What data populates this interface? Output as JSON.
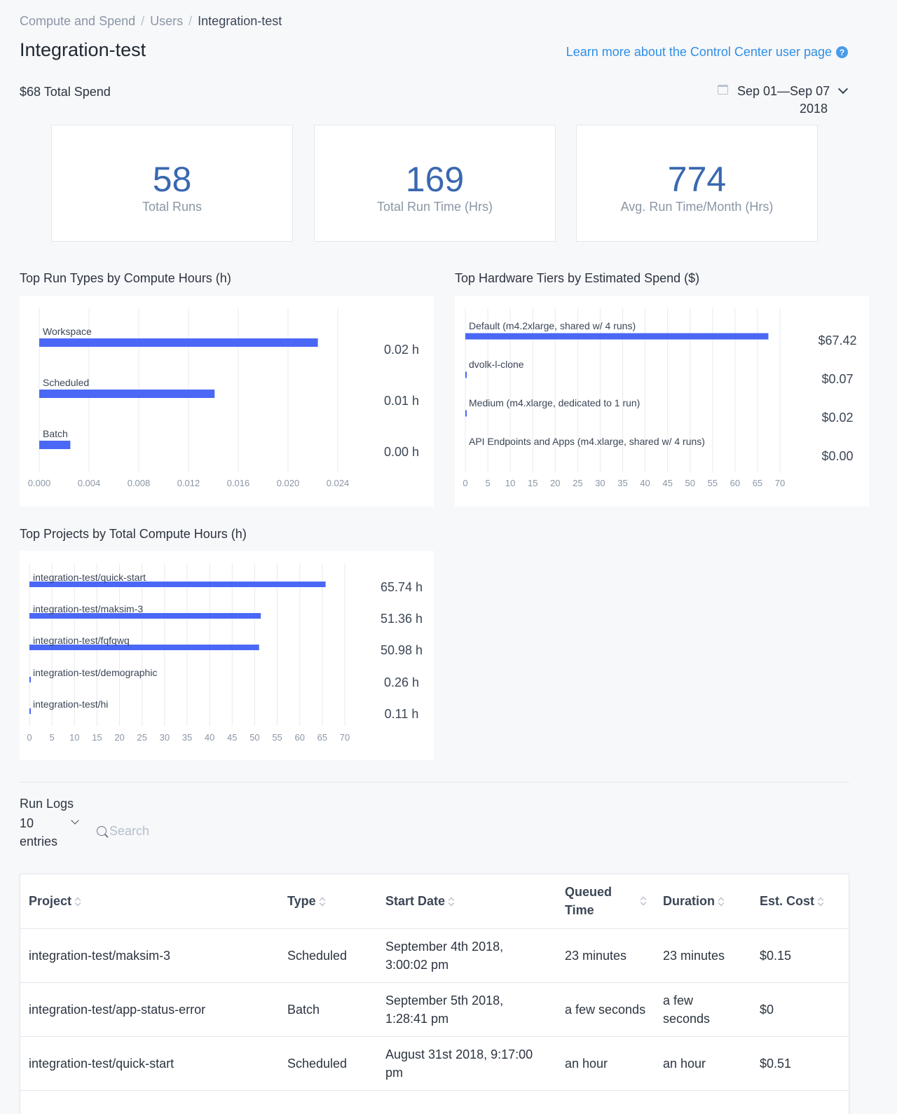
{
  "breadcrumb": {
    "items": [
      "Compute and Spend",
      "Users",
      "Integration-test"
    ],
    "separator": "/"
  },
  "page_title": "Integration-test",
  "learn_link": "Learn more about the Control Center user page",
  "total_spend": "$68 Total Spend",
  "date_range": {
    "line1": "Sep 01—Sep 07",
    "line2": "2018"
  },
  "stats": [
    {
      "value": "58",
      "label": "Total Runs"
    },
    {
      "value": "169",
      "label": "Total Run Time (Hrs)"
    },
    {
      "value": "774",
      "label": "Avg. Run Time/Month (Hrs)"
    }
  ],
  "colors": {
    "bar": "#4a68f5",
    "accent_blue": "#3a68b0",
    "link": "#2f8fe6"
  },
  "chart_data": [
    {
      "type": "bar",
      "title": "Top Run Types by Compute Hours (h)",
      "orientation": "horizontal",
      "categories": [
        "Workspace",
        "Scheduled",
        "Batch"
      ],
      "values": [
        0.0224,
        0.0141,
        0.0025
      ],
      "value_labels": [
        "0.02 h",
        "0.01 h",
        "0.00 h"
      ],
      "xlim": [
        0,
        0.024
      ],
      "ticks": [
        "0.000",
        "0.004",
        "0.008",
        "0.012",
        "0.016",
        "0.020",
        "0.024"
      ],
      "grid": true
    },
    {
      "type": "bar",
      "title": "Top Hardware Tiers by Estimated Spend ($)",
      "orientation": "horizontal",
      "categories": [
        "Default (m4.2xlarge, shared w/ 4 runs)",
        "dvolk-l-clone",
        "Medium (m4.xlarge, dedicated to 1 run)",
        "API Endpoints and Apps (m4.xlarge, shared w/ 4 runs)"
      ],
      "values": [
        67.42,
        0.07,
        0.02,
        0.0
      ],
      "value_labels": [
        "$67.42",
        "$0.07",
        "$0.02",
        "$0.00"
      ],
      "xlim": [
        0,
        70
      ],
      "ticks": [
        "0",
        "5",
        "10",
        "15",
        "20",
        "25",
        "30",
        "35",
        "40",
        "45",
        "50",
        "55",
        "60",
        "65",
        "70"
      ],
      "grid": true
    },
    {
      "type": "bar",
      "title": "Top Projects by Total Compute Hours (h)",
      "orientation": "horizontal",
      "categories": [
        "integration-test/quick-start",
        "integration-test/maksim-3",
        "integration-test/fqfqwq",
        "integration-test/demographic",
        "integration-test/hi"
      ],
      "values": [
        65.74,
        51.36,
        50.98,
        0.26,
        0.11
      ],
      "value_labels": [
        "65.74 h",
        "51.36 h",
        "50.98 h",
        "0.26 h",
        "0.11 h"
      ],
      "xlim": [
        0,
        70
      ],
      "ticks": [
        "0",
        "5",
        "10",
        "15",
        "20",
        "25",
        "30",
        "35",
        "40",
        "45",
        "50",
        "55",
        "60",
        "65",
        "70"
      ],
      "grid": true
    }
  ],
  "run_logs": {
    "title": "Run Logs",
    "entries_value": "10",
    "entries_label": "entries",
    "search_placeholder": "Search",
    "columns": [
      "Project",
      "Type",
      "Start Date",
      "Queued Time",
      "Duration",
      "Est. Cost"
    ],
    "rows": [
      [
        "integration-test/maksim-3",
        "Scheduled",
        "September 4th 2018, 3:00:02 pm",
        "23 minutes",
        "23 minutes",
        "$0.15"
      ],
      [
        "integration-test/app-status-error",
        "Batch",
        "September 5th 2018, 1:28:41 pm",
        "a few seconds",
        "a few seconds",
        "$0"
      ],
      [
        "integration-test/quick-start",
        "Scheduled",
        "August 31st 2018, 9:17:00 pm",
        "an hour",
        "an hour",
        "$0.51"
      ]
    ]
  }
}
